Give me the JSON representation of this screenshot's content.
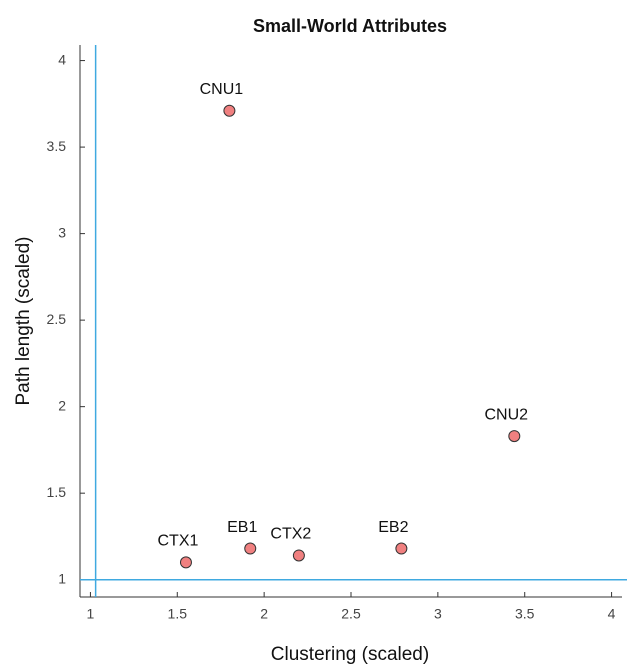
{
  "chart_data": {
    "type": "scatter",
    "title": "Small-World Attributes",
    "x_label": "Clustering (scaled)",
    "y_label": "Path length (scaled)",
    "labels": [
      "CNU1",
      "CTX1",
      "EB1",
      "CTX2",
      "EB2",
      "CNU2"
    ],
    "x": [
      1.8,
      1.55,
      1.92,
      2.2,
      2.79,
      3.44
    ],
    "values": [
      3.71,
      1.1,
      1.18,
      1.14,
      1.18,
      1.83
    ],
    "color": "#f08080",
    "xlim": [
      0.94,
      4.06
    ],
    "ylim": [
      0.9,
      4.09
    ],
    "xticks": [
      1,
      1.5,
      2,
      2.5,
      3,
      3.5,
      4
    ],
    "yticks": [
      1,
      1.5,
      2,
      2.5,
      3,
      3.5,
      4
    ],
    "reference_lines": {
      "x": 1.03,
      "y": 1,
      "color": "#3fa9e0"
    }
  }
}
